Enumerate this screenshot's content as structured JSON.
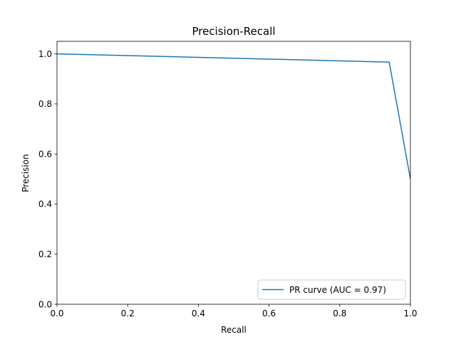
{
  "chart_data": {
    "type": "line",
    "title": "Precision-Recall",
    "xlabel": "Recall",
    "ylabel": "Precision",
    "xlim": [
      0.0,
      1.0
    ],
    "ylim": [
      0.0,
      1.05
    ],
    "xticks": [
      0.0,
      0.2,
      0.4,
      0.6,
      0.8,
      1.0
    ],
    "xtick_labels": [
      "0.0",
      "0.2",
      "0.4",
      "0.6",
      "0.8",
      "1.0"
    ],
    "yticks": [
      0.0,
      0.2,
      0.4,
      0.6,
      0.8,
      1.0
    ],
    "ytick_labels": [
      "0.0",
      "0.2",
      "0.4",
      "0.6",
      "0.8",
      "1.0"
    ],
    "grid": false,
    "legend_position": "lower right",
    "series": [
      {
        "name": "PR curve (AUC = 0.97)",
        "color": "#1f77b4",
        "x": [
          0.0,
          0.94,
          1.0
        ],
        "y": [
          1.0,
          0.967,
          0.5
        ]
      }
    ]
  }
}
